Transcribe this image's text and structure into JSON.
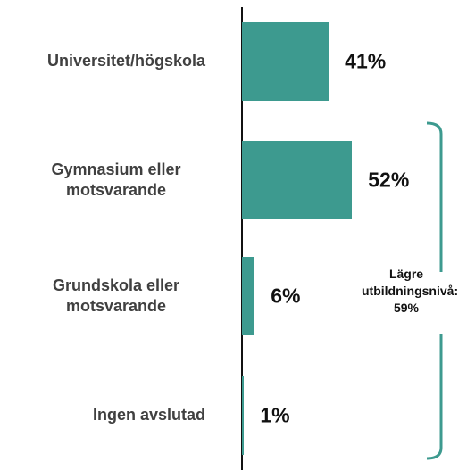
{
  "chart_data": {
    "type": "barh",
    "categories": [
      "Universitet/högskola",
      "Gymnasium eller motsvarande",
      "Grundskola eller motsvarande",
      "Ingen avslutad"
    ],
    "values": [
      41,
      52,
      6,
      1
    ],
    "value_labels": [
      "41%",
      "52%",
      "6%",
      "1%"
    ],
    "color": "#3d9a8f",
    "xlim": [
      0,
      100
    ],
    "annotation": "Lägre utbildningsnivå: 59%"
  }
}
